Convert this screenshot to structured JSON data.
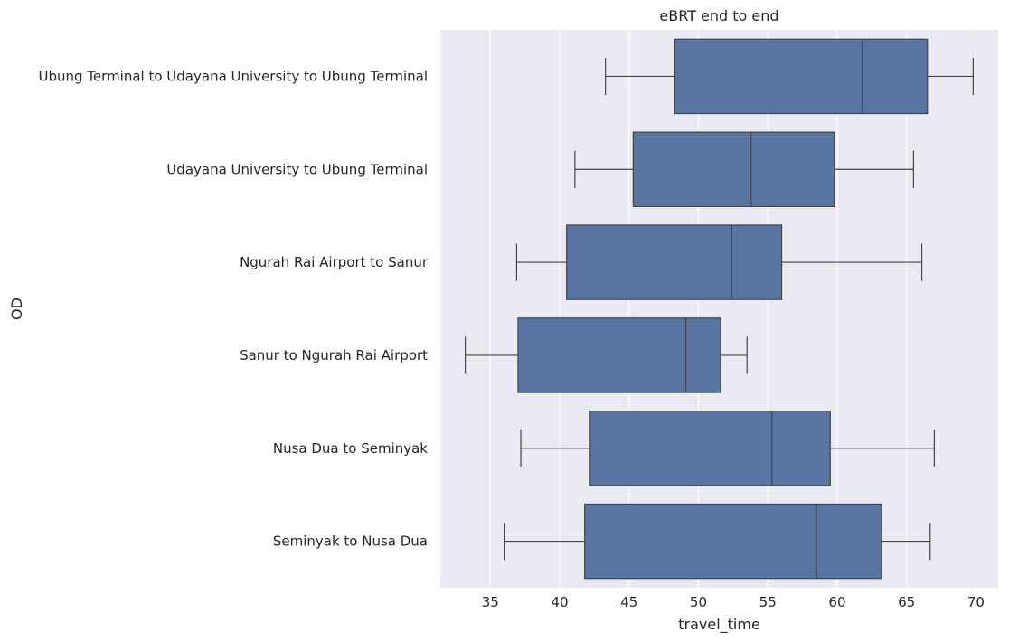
{
  "chart_data": {
    "type": "boxplot",
    "orientation": "horizontal",
    "title": "eBRT end to end",
    "xlabel": "travel_time",
    "ylabel": "OD",
    "xlim": [
      31.4,
      71.6
    ],
    "xticks": [
      35,
      40,
      45,
      50,
      55,
      60,
      65,
      70
    ],
    "grid": true,
    "box_color": "#5875a4",
    "edge_color": "#444444",
    "background_color": "#eaeaf2",
    "grid_color": "#ffffff",
    "categories": [
      "Ubung Terminal to Udayana University to Ubung Terminal",
      "Udayana University to Ubung Terminal",
      "Ngurah Rai Airport to Sanur",
      "Sanur to Ngurah Rai Airport",
      "Nusa Dua to Seminyak",
      "Seminyak to Nusa Dua"
    ],
    "boxes": [
      {
        "category": "Ubung Terminal to Udayana University to Ubung Terminal",
        "whislo": 43.3,
        "q1": 48.3,
        "med": 61.8,
        "q3": 66.5,
        "whishi": 69.8
      },
      {
        "category": "Udayana University to Ubung Terminal",
        "whislo": 41.1,
        "q1": 45.3,
        "med": 53.8,
        "q3": 59.8,
        "whishi": 65.5
      },
      {
        "category": "Ngurah Rai Airport to Sanur",
        "whislo": 36.9,
        "q1": 40.5,
        "med": 52.4,
        "q3": 56.0,
        "whishi": 66.1
      },
      {
        "category": "Sanur to Ngurah Rai Airport",
        "whislo": 33.2,
        "q1": 37.0,
        "med": 49.1,
        "q3": 51.6,
        "whishi": 53.5
      },
      {
        "category": "Nusa Dua to Seminyak",
        "whislo": 37.2,
        "q1": 42.2,
        "med": 55.3,
        "q3": 59.5,
        "whishi": 67.0
      },
      {
        "category": "Seminyak to Nusa Dua",
        "whislo": 36.0,
        "q1": 41.8,
        "med": 58.5,
        "q3": 63.2,
        "whishi": 66.7
      }
    ]
  }
}
